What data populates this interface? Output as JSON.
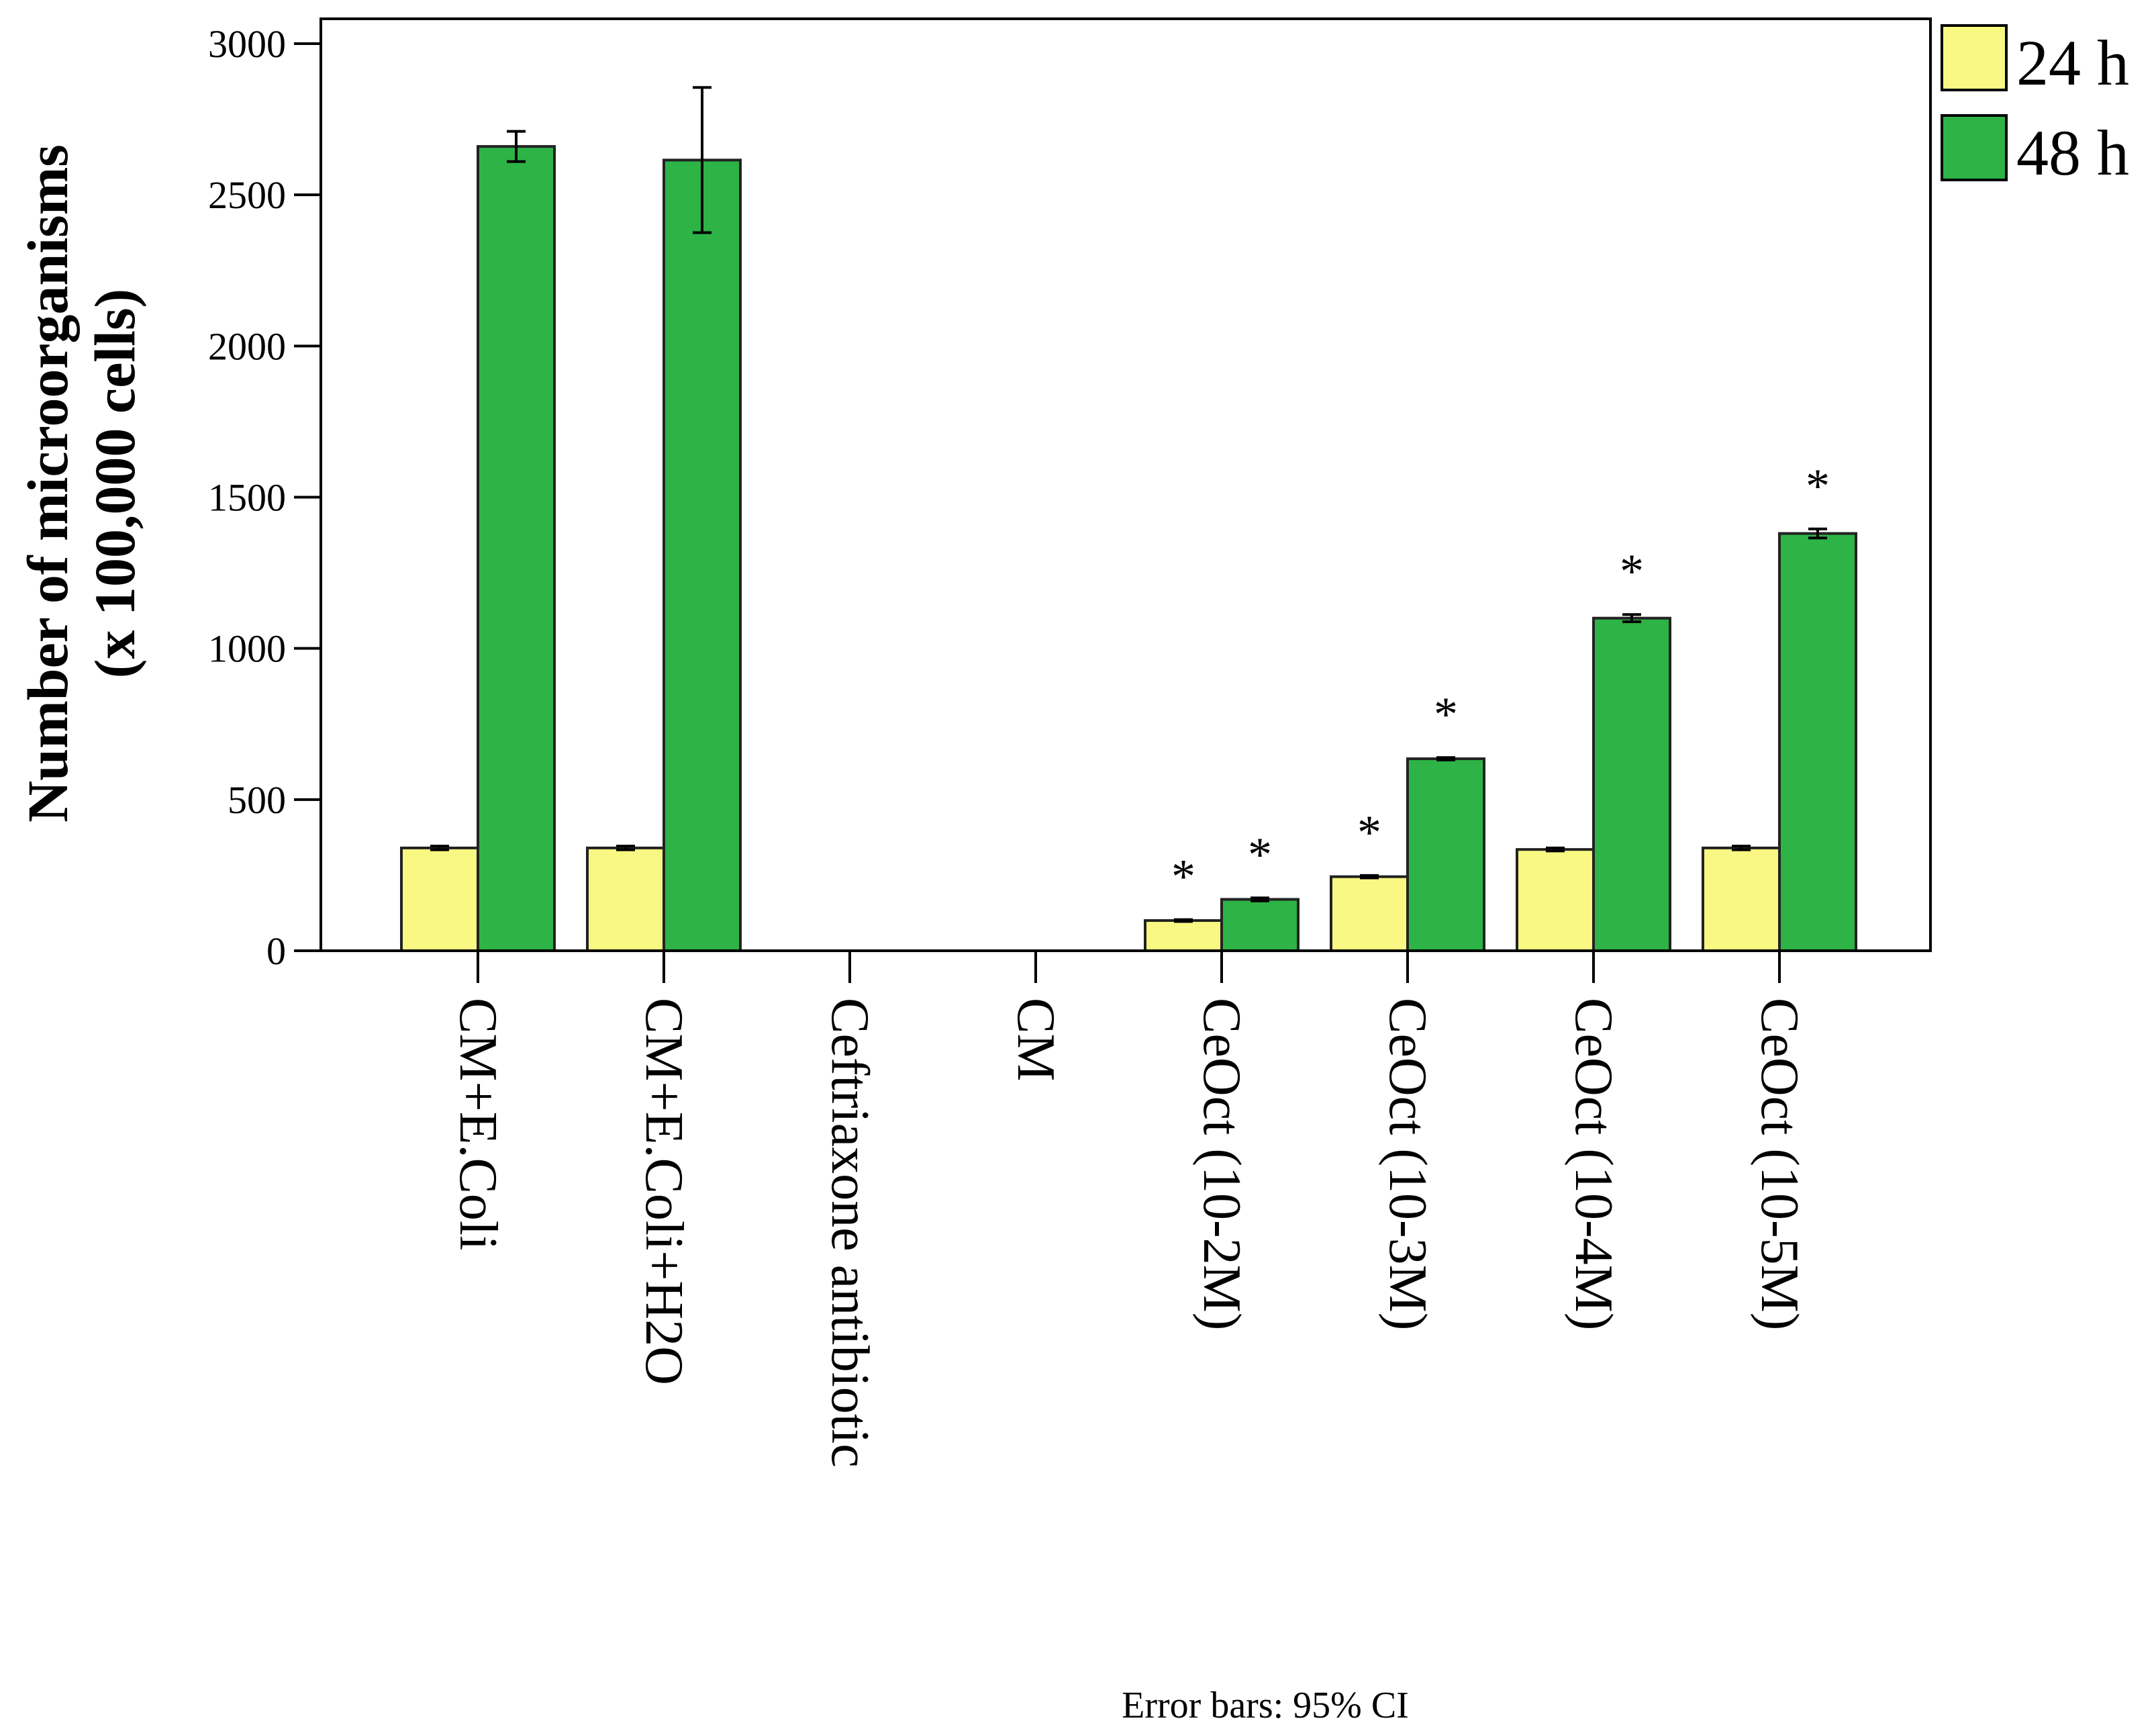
{
  "chart_data": {
    "type": "bar",
    "title": "",
    "xlabel": "",
    "ylabel_line1": "Number of microorganisms",
    "ylabel_line2": "(x 100,000 cells)",
    "ylim": [
      0,
      3000
    ],
    "yticks": [
      "0",
      "500",
      "1000",
      "1500",
      "2000",
      "2500",
      "3000"
    ],
    "categories": [
      "CM+E.Coli",
      "CM+E.Coli+H2O",
      "Ceftriaxone antibiotic",
      "CM",
      "CeOct (10-2M)",
      "CeOct (10-3M)",
      "CeOct (10-4M)",
      "CeOct (10-5M)"
    ],
    "series": [
      {
        "name": "24 h",
        "color": "#F8F882",
        "values": [
          340,
          340,
          0,
          0,
          100,
          245,
          335,
          340
        ],
        "ci_halfwidth": [
          6,
          6,
          0,
          0,
          3,
          4,
          5,
          6
        ],
        "significant": [
          false,
          false,
          false,
          false,
          true,
          true,
          false,
          false
        ]
      },
      {
        "name": "48 h",
        "color": "#2DB346",
        "values": [
          2660,
          2615,
          0,
          0,
          170,
          635,
          1100,
          1380
        ],
        "ci_halfwidth": [
          50,
          240,
          0,
          0,
          5,
          4,
          12,
          15
        ],
        "significant": [
          false,
          false,
          false,
          false,
          true,
          true,
          true,
          true
        ]
      }
    ],
    "significance_marker": "*",
    "legend": [
      "24 h",
      "48 h"
    ],
    "legend_position": "top-right",
    "footnote": "Error bars: 95% CI",
    "grid": false
  }
}
